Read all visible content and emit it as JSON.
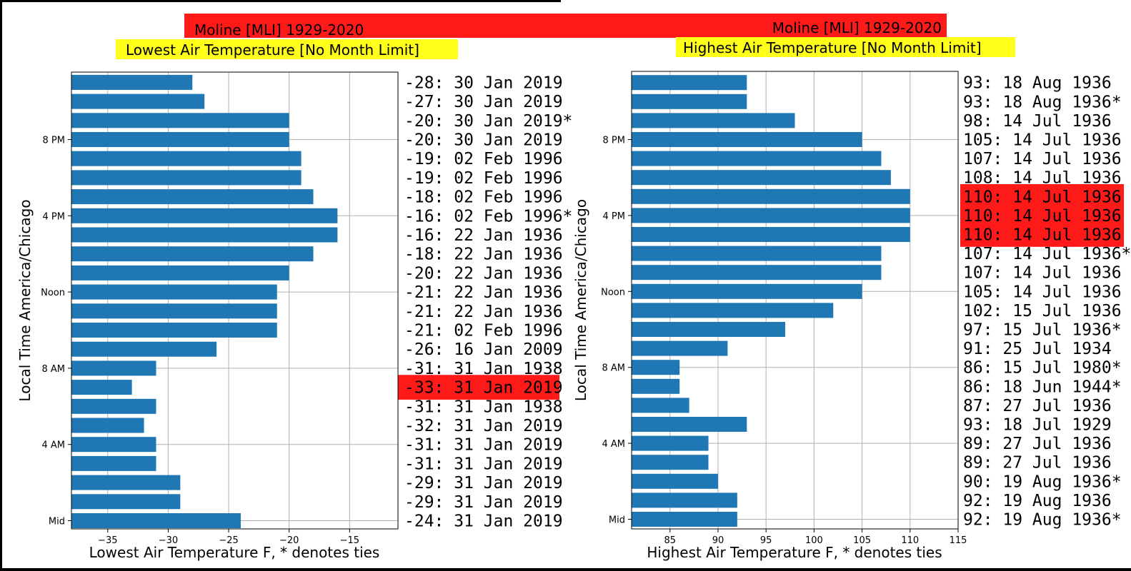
{
  "banner": {
    "left_site": "Moline [MLI] 1929-2020",
    "right_site": "Moline [MLI] 1929-2020",
    "banner_color": "#ff1a1a",
    "subtitle_bg": "#ffff1a"
  },
  "chart_data": [
    {
      "type": "bar",
      "orientation": "horizontal",
      "subtitle": "Lowest Air Temperature [No Month Limit]",
      "xlabel": "Lowest Air Temperature F, * denotes ties",
      "ylabel": "Local Time America/Chicago",
      "xlim": [
        -38,
        -11
      ],
      "xticks": [
        -35,
        -30,
        -25,
        -20,
        -15
      ],
      "yticks": [
        {
          "hour": 0,
          "label": "Mid"
        },
        {
          "hour": 4,
          "label": "4 AM"
        },
        {
          "hour": 8,
          "label": "8 AM"
        },
        {
          "hour": 12,
          "label": "Noon"
        },
        {
          "hour": 16,
          "label": "4 PM"
        },
        {
          "hour": 20,
          "label": "8 PM"
        }
      ],
      "grid": true,
      "bar_color": "#1f77b4",
      "highlight_color": "#ff1a1a",
      "hours": [
        0,
        1,
        2,
        3,
        4,
        5,
        6,
        7,
        8,
        9,
        10,
        11,
        12,
        13,
        14,
        15,
        16,
        17,
        18,
        19,
        20,
        21,
        22,
        23
      ],
      "values": [
        -24,
        -29,
        -29,
        -31,
        -31,
        -32,
        -31,
        -33,
        -31,
        -26,
        -21,
        -21,
        -21,
        -20,
        -18,
        -16,
        -16,
        -18,
        -19,
        -19,
        -20,
        -20,
        -27,
        -28
      ],
      "labels": [
        "-24: 31 Jan 2019",
        "-29: 31 Jan 2019",
        "-29: 31 Jan 2019",
        "-31: 31 Jan 2019",
        "-31: 31 Jan 2019",
        "-32: 31 Jan 2019",
        "-31: 31 Jan 1938",
        "-33: 31 Jan 2019",
        "-31: 31 Jan 1938",
        "-26: 16 Jan 2009",
        "-21: 02 Feb 1996",
        "-21: 22 Jan 1936",
        "-21: 22 Jan 1936",
        "-20: 22 Jan 1936",
        "-18: 22 Jan 1936",
        "-16: 22 Jan 1936",
        "-16: 02 Feb 1996*",
        "-18: 02 Feb 1996",
        "-19: 02 Feb 1996",
        "-19: 02 Feb 1996",
        "-20: 30 Jan 2019",
        "-20: 30 Jan 2019*",
        "-27: 30 Jan 2019",
        "-28: 30 Jan 2019"
      ],
      "highlighted_hours": [
        7
      ]
    },
    {
      "type": "bar",
      "orientation": "horizontal",
      "subtitle": "Highest Air Temperature [No Month Limit]",
      "xlabel": "Highest Air Temperature F, * denotes ties",
      "ylabel": "Local Time America/Chicago",
      "xlim": [
        81,
        115
      ],
      "xticks": [
        85,
        90,
        95,
        100,
        105,
        110,
        115
      ],
      "yticks": [
        {
          "hour": 0,
          "label": "Mid"
        },
        {
          "hour": 4,
          "label": "4 AM"
        },
        {
          "hour": 8,
          "label": "8 AM"
        },
        {
          "hour": 12,
          "label": "Noon"
        },
        {
          "hour": 16,
          "label": "4 PM"
        },
        {
          "hour": 20,
          "label": "8 PM"
        }
      ],
      "grid": true,
      "bar_color": "#1f77b4",
      "highlight_color": "#ff1a1a",
      "hours": [
        0,
        1,
        2,
        3,
        4,
        5,
        6,
        7,
        8,
        9,
        10,
        11,
        12,
        13,
        14,
        15,
        16,
        17,
        18,
        19,
        20,
        21,
        22,
        23
      ],
      "values": [
        92,
        92,
        90,
        89,
        89,
        93,
        87,
        86,
        86,
        91,
        97,
        102,
        105,
        107,
        107,
        110,
        110,
        110,
        108,
        107,
        105,
        98,
        93,
        93
      ],
      "labels": [
        "92: 19 Aug 1936*",
        "92: 19 Aug 1936",
        "90: 19 Aug 1936*",
        "89: 27 Jul 1936",
        "89: 27 Jul 1936",
        "93: 18 Jul 1929",
        "87: 27 Jul 1936",
        "86: 18 Jun 1944*",
        "86: 15 Jul 1980*",
        "91: 25 Jul 1934",
        "97: 15 Jul 1936*",
        "102: 15 Jul 1936",
        "105: 14 Jul 1936",
        "107: 14 Jul 1936",
        "107: 14 Jul 1936*",
        "110: 14 Jul 1936",
        "110: 14 Jul 1936",
        "110: 14 Jul 1936",
        "108: 14 Jul 1936",
        "107: 14 Jul 1936",
        "105: 14 Jul 1936",
        "98: 14 Jul 1936",
        "93: 18 Aug 1936*",
        "93: 18 Aug 1936"
      ],
      "highlighted_hours": [
        15,
        16,
        17
      ]
    }
  ]
}
